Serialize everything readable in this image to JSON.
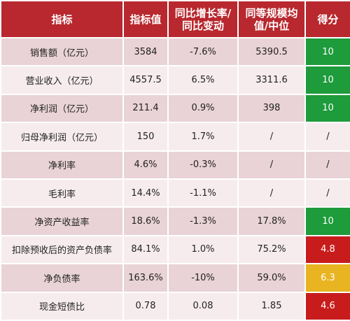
{
  "table": {
    "headers": [
      "指标",
      "指标值",
      "同比增长率/同比变动",
      "同等规模均值/中位",
      "得分"
    ],
    "rows": [
      {
        "name": "销售额（亿元）",
        "value": "3584",
        "yoy": "-7.6%",
        "peer": "5390.5",
        "score": "10",
        "score_level": "good"
      },
      {
        "name": "营业收入（亿元）",
        "value": "4557.5",
        "yoy": "6.5%",
        "peer": "3311.6",
        "score": "10",
        "score_level": "good"
      },
      {
        "name": "净利润（亿元）",
        "value": "211.4",
        "yoy": "0.9%",
        "peer": "398",
        "score": "10",
        "score_level": "good"
      },
      {
        "name": "归母净利润（亿元）",
        "value": "150",
        "yoy": "1.7%",
        "peer": "/",
        "score": "/",
        "score_level": "none"
      },
      {
        "name": "净利率",
        "value": "4.6%",
        "yoy": "-0.3%",
        "peer": "/",
        "score": "/",
        "score_level": "none"
      },
      {
        "name": "毛利率",
        "value": "14.4%",
        "yoy": "-1.1%",
        "peer": "/",
        "score": "/",
        "score_level": "none"
      },
      {
        "name": "净资产收益率",
        "value": "18.6%",
        "yoy": "-1.3%",
        "peer": "17.8%",
        "score": "10",
        "score_level": "good"
      },
      {
        "name": "扣除预收后的资产负债率",
        "value": "84.1%",
        "yoy": "1.0%",
        "peer": "75.2%",
        "score": "4.8",
        "score_level": "bad"
      },
      {
        "name": "净负债率",
        "value": "163.6%",
        "yoy": "-10%",
        "peer": "59.0%",
        "score": "6.3",
        "score_level": "mid"
      },
      {
        "name": "现金短债比",
        "value": "0.78",
        "yoy": "0.08",
        "peer": "1.85",
        "score": "4.6",
        "score_level": "bad"
      }
    ]
  },
  "colors": {
    "header_bg": "#b8282e",
    "row_odd": "#e9d3d6",
    "row_even": "#f6ecee",
    "score_good": "#1e9b3b",
    "score_bad": "#c81c1c",
    "score_mid": "#e9b422"
  }
}
